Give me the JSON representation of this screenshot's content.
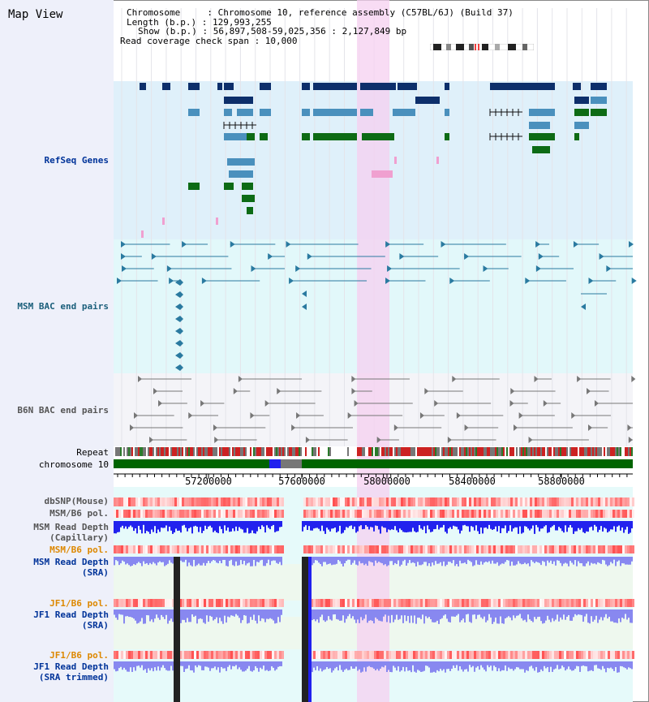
{
  "view_title": "Map View",
  "info": {
    "chromosome": "Chromosome     : Chromosome 10, reference assembly (C57BL/6J) (Build 37)",
    "length": "Length (b.p.) : 129,993,255",
    "show": "Show (b.p.) : 56,897,508-59,025,356 : 2,127,849 bp",
    "span": "Read coverage check span : 10,000"
  },
  "track_labels": {
    "refseq": "RefSeq Genes",
    "msm_bac": "MSM BAC end pairs",
    "b6n_bac": "B6N BAC end pairs",
    "repeat": "Repeat",
    "chromosome": "chromosome 10",
    "dbsnp": "dbSNP(Mouse)",
    "msm_b6_pol_1": "MSM/B6 pol.",
    "msm_depth_cap": "MSM Read Depth\n(Capillary)",
    "msm_b6_pol_2": "MSM/B6 pol.",
    "msm_depth_sra": "MSM Read Depth\n(SRA)",
    "jf1_b6_pol_1": "JF1/B6 pol.",
    "jf1_depth_sra": "JF1 Read Depth\n(SRA)",
    "jf1_b6_pol_2": "JF1/B6 pol.",
    "jf1_depth_trim": "JF1 Read Depth\n(SRA trimmed)"
  },
  "axis_ticks": [
    "57200000",
    "57600000",
    "58000000",
    "58400000",
    "58800000"
  ],
  "colors": {
    "refseq_bg": "#dff0fa",
    "msm_bg": "#e2f8fa",
    "b6n_bg": "#f4f4f8",
    "highlight": "#f5d0f0",
    "gene_dark": "#0d2f6b",
    "gene_mid": "#4a90bd",
    "gene_green": "#0d6b15",
    "bac_blue": "#2a7aa0",
    "bac_gray": "#777777",
    "chrom_green": "#006400",
    "depth_blue": "#2222ee",
    "depth_light": "#8888f0",
    "label_blue": "#003399",
    "label_orange": "#dd8800"
  }
}
